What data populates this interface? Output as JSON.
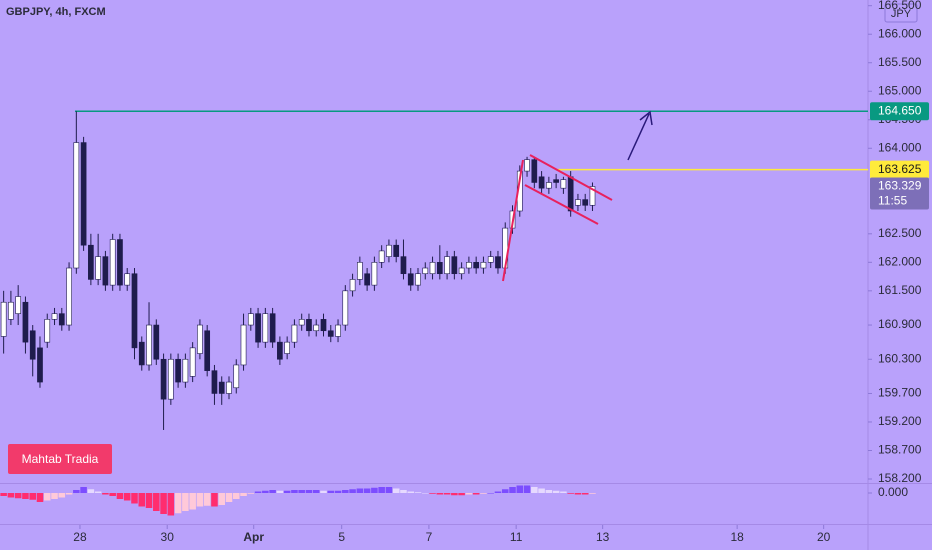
{
  "chart_data": [
    {
      "type": "candlestick",
      "title": "GBPJPY, 4h, FXCM",
      "currency": "JPY",
      "up_color": "#ffffff",
      "down_color": "#1f1c4d",
      "wick_color": "#1f1c4d",
      "open": [
        160.7,
        161.0,
        161.1,
        161.3,
        160.8,
        160.5,
        160.6,
        161.0,
        161.1,
        160.9,
        161.9,
        164.1,
        162.3,
        161.7,
        162.1,
        161.6,
        162.4,
        161.6,
        161.8,
        160.6,
        160.2,
        160.9,
        160.3,
        159.6,
        160.3,
        159.9,
        160.0,
        160.4,
        160.8,
        160.1,
        159.9,
        159.7,
        159.8,
        160.2,
        160.9,
        161.1,
        160.6,
        161.1,
        160.6,
        160.4,
        160.6,
        160.9,
        161.0,
        160.8,
        161.0,
        160.8,
        160.7,
        160.9,
        161.5,
        161.7,
        161.8,
        161.6,
        162.0,
        162.1,
        162.3,
        162.1,
        161.8,
        161.6,
        161.8,
        161.8,
        162.0,
        161.8,
        162.1,
        161.8,
        161.9,
        162.0,
        161.9,
        162.0,
        162.1,
        161.9,
        162.6,
        162.9,
        163.6,
        163.8,
        163.5,
        163.3,
        163.45,
        163.3,
        163.5,
        163.0,
        163.1,
        163.0
      ],
      "high": [
        161.5,
        161.5,
        161.6,
        161.4,
        160.9,
        160.7,
        161.1,
        161.2,
        161.2,
        162.0,
        164.65,
        164.2,
        162.5,
        162.5,
        162.2,
        162.5,
        162.5,
        161.9,
        161.9,
        160.7,
        161.3,
        161.0,
        160.4,
        160.4,
        160.4,
        160.4,
        160.6,
        161.0,
        160.9,
        160.2,
        160.0,
        160.0,
        160.3,
        161.1,
        161.2,
        161.2,
        161.2,
        161.2,
        160.7,
        160.7,
        161.0,
        161.1,
        161.1,
        161.0,
        161.1,
        160.9,
        161.0,
        161.6,
        161.8,
        162.1,
        161.9,
        162.1,
        162.3,
        162.4,
        162.4,
        162.4,
        161.9,
        161.9,
        162.0,
        162.1,
        162.3,
        162.2,
        162.2,
        162.0,
        162.1,
        162.1,
        162.1,
        162.2,
        162.2,
        162.7,
        163.0,
        163.7,
        163.85,
        163.85,
        163.6,
        163.5,
        163.55,
        163.5,
        163.6,
        163.2,
        163.2,
        163.4
      ],
      "low": [
        160.4,
        160.9,
        160.9,
        160.4,
        160.0,
        159.8,
        160.5,
        160.9,
        160.8,
        160.8,
        161.8,
        162.2,
        161.6,
        161.6,
        161.5,
        161.5,
        161.5,
        161.5,
        160.3,
        160.1,
        160.1,
        160.2,
        159.06,
        159.5,
        159.8,
        159.8,
        159.9,
        160.3,
        160.0,
        159.5,
        159.5,
        159.6,
        159.7,
        160.1,
        160.8,
        160.5,
        160.5,
        160.5,
        160.2,
        160.3,
        160.5,
        160.8,
        160.7,
        160.7,
        160.7,
        160.6,
        160.6,
        160.8,
        161.4,
        161.6,
        161.5,
        161.5,
        161.9,
        162.0,
        162.0,
        161.7,
        161.5,
        161.5,
        161.7,
        161.7,
        161.7,
        161.7,
        161.7,
        161.7,
        161.8,
        161.8,
        161.8,
        161.9,
        161.8,
        161.8,
        162.5,
        162.8,
        163.5,
        163.3,
        163.2,
        163.2,
        163.3,
        163.2,
        162.8,
        162.9,
        162.9,
        162.9
      ],
      "close": [
        161.3,
        161.3,
        161.4,
        160.6,
        160.3,
        159.9,
        161.0,
        161.1,
        160.9,
        161.9,
        164.1,
        162.3,
        161.7,
        162.1,
        161.6,
        162.4,
        161.6,
        161.8,
        160.5,
        160.2,
        160.9,
        160.3,
        159.6,
        160.3,
        159.9,
        160.3,
        160.5,
        160.9,
        160.1,
        159.7,
        159.7,
        159.9,
        160.2,
        160.9,
        161.1,
        160.6,
        161.1,
        160.6,
        160.3,
        160.6,
        160.9,
        161.0,
        160.8,
        160.9,
        160.8,
        160.7,
        160.9,
        161.5,
        161.7,
        162.0,
        161.6,
        162.0,
        162.2,
        162.3,
        162.1,
        161.8,
        161.6,
        161.8,
        161.9,
        162.0,
        161.8,
        162.1,
        161.8,
        161.9,
        162.0,
        161.9,
        162.0,
        162.1,
        161.9,
        162.6,
        162.9,
        163.6,
        163.8,
        163.4,
        163.3,
        163.4,
        163.4,
        163.45,
        162.9,
        163.1,
        163.0,
        163.329
      ],
      "xlim": [
        -0.5,
        118.9
      ],
      "xticks": [
        {
          "value": 10.5,
          "label": "28"
        },
        {
          "value": 22.5,
          "label": "30"
        },
        {
          "value": 34.4,
          "label": "Apr"
        },
        {
          "value": 46.5,
          "label": "5"
        },
        {
          "value": 58.5,
          "label": "7"
        },
        {
          "value": 70.5,
          "label": "11"
        },
        {
          "value": 82.4,
          "label": "13"
        },
        {
          "value": 100.9,
          "label": "18"
        },
        {
          "value": 112.8,
          "label": "20"
        }
      ],
      "ylim": [
        158.13,
        166.6
      ],
      "yticks": [
        {
          "value": 166.5,
          "label": "166.500"
        },
        {
          "value": 166,
          "label": "166.000"
        },
        {
          "value": 165.5,
          "label": "165.500"
        },
        {
          "value": 165,
          "label": "165.000"
        },
        {
          "value": 164.5,
          "label": "164.500"
        },
        {
          "value": 164,
          "label": "164.000"
        },
        {
          "value": 162.5,
          "label": "162.500"
        },
        {
          "value": 162,
          "label": "162.000"
        },
        {
          "value": 161.5,
          "label": "161.500"
        },
        {
          "value": 160.9,
          "label": "160.900"
        },
        {
          "value": 160.3,
          "label": "160.300"
        },
        {
          "value": 159.7,
          "label": "159.700"
        },
        {
          "value": 159.2,
          "label": "159.200"
        },
        {
          "value": 158.7,
          "label": "158.700"
        },
        {
          "value": 158.2,
          "label": "158.200"
        }
      ],
      "price_lines": [
        {
          "value": 164.65,
          "label": "164.650",
          "color": "#089981",
          "text_color": "#ffffff"
        },
        {
          "value": 163.625,
          "color": "#ffeb3b",
          "text_color": "#1a1a1a"
        }
      ],
      "last_price": 163.329,
      "countdown": "11:55",
      "last_price_color": "#7d6fb8"
    },
    {
      "type": "bar",
      "values": [
        -0.004,
        -0.006,
        -0.007,
        -0.008,
        -0.009,
        -0.012,
        -0.01,
        -0.008,
        -0.006,
        -0.002,
        0.004,
        0.008,
        0.005,
        0.002,
        -0.002,
        -0.004,
        -0.008,
        -0.01,
        -0.014,
        -0.018,
        -0.02,
        -0.024,
        -0.028,
        -0.03,
        -0.027,
        -0.024,
        -0.022,
        -0.018,
        -0.017,
        -0.018,
        -0.016,
        -0.012,
        -0.008,
        -0.004,
        -0.001,
        0.002,
        0.003,
        0.004,
        0.003,
        0.003,
        0.004,
        0.004,
        0.004,
        0.004,
        0.003,
        0.003,
        0.003,
        0.004,
        0.005,
        0.006,
        0.006,
        0.007,
        0.008,
        0.008,
        0.006,
        0.004,
        0.002,
        0.001,
        0.0,
        -0.001,
        -0.002,
        -0.002,
        -0.003,
        -0.003,
        -0.002,
        -0.002,
        -0.001,
        0.0,
        0.002,
        0.005,
        0.008,
        0.01,
        0.01,
        0.008,
        0.006,
        0.004,
        0.003,
        0.002,
        -0.001,
        -0.002,
        -0.002,
        -0.001
      ],
      "colors": [
        "#7c4dff",
        "#e6d9ff",
        "#ff2d6f",
        "#ffc9d9"
      ],
      "ylim": [
        -0.036,
        0.012
      ],
      "yticks": [
        {
          "value": 0,
          "label": "0.000"
        }
      ]
    }
  ],
  "badge": "Mahtab Tradia"
}
